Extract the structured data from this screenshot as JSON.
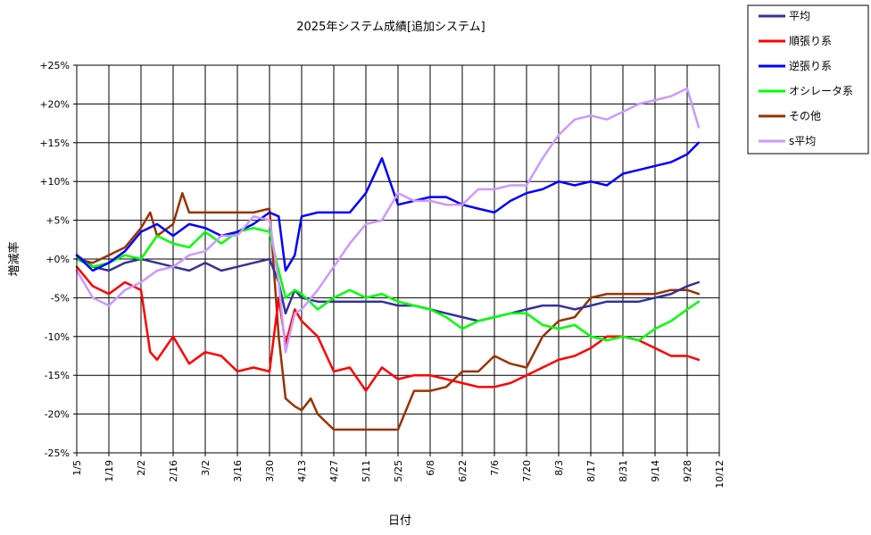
{
  "chart_data": {
    "type": "line",
    "title": "2025年システム成績[追加システム]",
    "xlabel": "日付",
    "ylabel": "増減率",
    "ylim": [
      -25,
      25
    ],
    "yticks": [
      25,
      20,
      15,
      10,
      5,
      0,
      -5,
      -10,
      -15,
      -20,
      -25
    ],
    "ytick_labels": [
      "+25%",
      "+20%",
      "+15%",
      "+10%",
      "+5%",
      "+0%",
      "-5%",
      "-10%",
      "-15%",
      "-20%",
      "-25%"
    ],
    "x_start": "1/5",
    "x_end": "10/12",
    "xtick_labels": [
      "1/5",
      "1/19",
      "2/2",
      "2/16",
      "3/2",
      "3/16",
      "3/30",
      "4/13",
      "4/27",
      "5/11",
      "5/25",
      "6/8",
      "6/22",
      "7/6",
      "7/20",
      "8/3",
      "8/17",
      "8/31",
      "9/14",
      "9/28",
      "10/12"
    ],
    "grid": true,
    "legend_position": "right",
    "series": [
      {
        "name": "平均",
        "color": "#333399",
        "x": [
          "1/5",
          "1/12",
          "1/19",
          "1/26",
          "2/2",
          "2/9",
          "2/16",
          "2/23",
          "3/2",
          "3/9",
          "3/16",
          "3/23",
          "3/30",
          "4/3",
          "4/6",
          "4/10",
          "4/13",
          "4/20",
          "4/27",
          "5/4",
          "5/11",
          "5/18",
          "5/25",
          "6/1",
          "6/8",
          "6/15",
          "6/22",
          "6/29",
          "7/6",
          "7/13",
          "7/20",
          "7/27",
          "8/3",
          "8/10",
          "8/17",
          "8/24",
          "8/31",
          "9/7",
          "9/14",
          "9/21",
          "9/28",
          "10/3"
        ],
        "values": [
          0.5,
          -1.0,
          -1.5,
          -0.5,
          0.0,
          -0.5,
          -1.0,
          -1.5,
          -0.5,
          -1.5,
          -1.0,
          -0.5,
          0.0,
          -3.0,
          -7.0,
          -4.0,
          -5.0,
          -5.5,
          -5.5,
          -5.5,
          -5.5,
          -5.5,
          -6.0,
          -6.0,
          -6.5,
          -7.0,
          -7.5,
          -8.0,
          -7.5,
          -7.0,
          -6.5,
          -6.0,
          -6.0,
          -6.5,
          -6.0,
          -5.5,
          -5.5,
          -5.5,
          -5.0,
          -4.5,
          -3.5,
          -3.0
        ]
      },
      {
        "name": "順張り系",
        "color": "#ff0000",
        "x": [
          "1/5",
          "1/12",
          "1/19",
          "1/26",
          "2/2",
          "2/6",
          "2/9",
          "2/16",
          "2/23",
          "3/2",
          "3/9",
          "3/16",
          "3/23",
          "3/30",
          "4/3",
          "4/6",
          "4/10",
          "4/13",
          "4/20",
          "4/27",
          "5/4",
          "5/11",
          "5/18",
          "5/25",
          "6/1",
          "6/8",
          "6/15",
          "6/22",
          "6/29",
          "7/6",
          "7/13",
          "7/20",
          "7/27",
          "8/3",
          "8/10",
          "8/17",
          "8/24",
          "8/31",
          "9/7",
          "9/14",
          "9/21",
          "9/28",
          "10/3"
        ],
        "values": [
          -1.0,
          -3.5,
          -4.5,
          -3.0,
          -4.0,
          -12.0,
          -13.0,
          -10.0,
          -13.5,
          -12.0,
          -12.5,
          -14.5,
          -14.0,
          -14.5,
          -5.0,
          -11.0,
          -6.5,
          -8.0,
          -10.0,
          -14.5,
          -14.0,
          -17.0,
          -14.0,
          -15.5,
          -15.0,
          -15.0,
          -15.5,
          -16.0,
          -16.5,
          -16.5,
          -16.0,
          -15.0,
          -14.0,
          -13.0,
          -12.5,
          -11.5,
          -10.0,
          -10.0,
          -10.5,
          -11.5,
          -12.5,
          -12.5,
          -13.0
        ]
      },
      {
        "name": "逆張り系",
        "color": "#0000ff",
        "x": [
          "1/5",
          "1/12",
          "1/19",
          "1/26",
          "2/2",
          "2/9",
          "2/16",
          "2/23",
          "3/2",
          "3/9",
          "3/16",
          "3/23",
          "3/30",
          "4/3",
          "4/6",
          "4/10",
          "4/13",
          "4/20",
          "4/27",
          "5/4",
          "5/11",
          "5/18",
          "5/25",
          "6/1",
          "6/8",
          "6/15",
          "6/22",
          "6/29",
          "7/6",
          "7/13",
          "7/20",
          "7/27",
          "8/3",
          "8/10",
          "8/17",
          "8/24",
          "8/31",
          "9/7",
          "9/14",
          "9/21",
          "9/28",
          "10/3"
        ],
        "values": [
          0.5,
          -1.5,
          -0.5,
          1.0,
          3.5,
          4.5,
          3.0,
          4.5,
          4.0,
          3.0,
          3.5,
          4.5,
          6.0,
          5.5,
          -1.5,
          0.5,
          5.5,
          6.0,
          6.0,
          6.0,
          8.5,
          13.0,
          7.0,
          7.5,
          8.0,
          8.0,
          7.0,
          6.5,
          6.0,
          7.5,
          8.5,
          9.0,
          10.0,
          9.5,
          10.0,
          9.5,
          11.0,
          11.5,
          12.0,
          12.5,
          13.5,
          15.0
        ]
      },
      {
        "name": "オシレータ系",
        "color": "#00ff00",
        "x": [
          "1/5",
          "1/12",
          "1/19",
          "1/26",
          "2/2",
          "2/9",
          "2/16",
          "2/23",
          "3/2",
          "3/9",
          "3/16",
          "3/23",
          "3/30",
          "4/3",
          "4/6",
          "4/10",
          "4/13",
          "4/20",
          "4/27",
          "5/4",
          "5/11",
          "5/18",
          "5/25",
          "6/1",
          "6/8",
          "6/15",
          "6/22",
          "6/29",
          "7/6",
          "7/13",
          "7/20",
          "7/27",
          "8/3",
          "8/10",
          "8/17",
          "8/24",
          "8/31",
          "9/7",
          "9/14",
          "9/21",
          "9/28",
          "10/3"
        ],
        "values": [
          0.0,
          -1.0,
          -0.5,
          0.5,
          0.0,
          3.0,
          2.0,
          1.5,
          3.5,
          2.0,
          3.5,
          4.0,
          3.5,
          -1.5,
          -5.0,
          -4.0,
          -4.5,
          -6.5,
          -5.0,
          -4.0,
          -5.0,
          -4.5,
          -5.5,
          -6.0,
          -6.5,
          -7.5,
          -9.0,
          -8.0,
          -7.5,
          -7.0,
          -7.0,
          -8.5,
          -9.0,
          -8.5,
          -10.0,
          -10.5,
          -10.0,
          -10.5,
          -9.0,
          -8.0,
          -6.5,
          -5.5
        ]
      },
      {
        "name": "その他",
        "color": "#993300",
        "x": [
          "1/5",
          "1/12",
          "1/19",
          "1/26",
          "2/2",
          "2/6",
          "2/9",
          "2/16",
          "2/20",
          "2/23",
          "3/2",
          "3/9",
          "3/16",
          "3/23",
          "3/30",
          "4/3",
          "4/6",
          "4/10",
          "4/13",
          "4/17",
          "4/20",
          "4/27",
          "5/4",
          "5/11",
          "5/18",
          "5/25",
          "6/1",
          "6/8",
          "6/15",
          "6/22",
          "6/29",
          "7/6",
          "7/13",
          "7/20",
          "7/27",
          "8/3",
          "8/10",
          "8/17",
          "8/24",
          "8/31",
          "9/7",
          "9/14",
          "9/21",
          "9/28",
          "10/3"
        ],
        "values": [
          0.0,
          -0.5,
          0.5,
          1.5,
          4.0,
          6.0,
          3.0,
          4.5,
          8.5,
          6.0,
          6.0,
          6.0,
          6.0,
          6.0,
          6.5,
          -10.0,
          -18.0,
          -19.0,
          -19.5,
          -18.0,
          -20.0,
          -22.0,
          -22.0,
          -22.0,
          -22.0,
          -22.0,
          -17.0,
          -17.0,
          -16.5,
          -14.5,
          -14.5,
          -12.5,
          -13.5,
          -14.0,
          -10.0,
          -8.0,
          -7.5,
          -5.0,
          -4.5,
          -4.5,
          -4.5,
          -4.5,
          -4.0,
          -4.0,
          -4.5
        ]
      },
      {
        "name": "s平均",
        "color": "#cc99ff",
        "x": [
          "1/5",
          "1/12",
          "1/19",
          "1/26",
          "2/2",
          "2/9",
          "2/16",
          "2/23",
          "3/2",
          "3/9",
          "3/16",
          "3/23",
          "3/30",
          "4/3",
          "4/6",
          "4/10",
          "4/13",
          "4/20",
          "4/27",
          "5/4",
          "5/11",
          "5/18",
          "5/25",
          "6/1",
          "6/8",
          "6/15",
          "6/22",
          "6/29",
          "7/6",
          "7/13",
          "7/20",
          "7/27",
          "8/3",
          "8/10",
          "8/17",
          "8/24",
          "8/31",
          "9/7",
          "9/14",
          "9/21",
          "9/28",
          "10/3"
        ],
        "values": [
          -1.5,
          -5.0,
          -6.0,
          -4.0,
          -3.0,
          -1.5,
          -1.0,
          0.5,
          1.0,
          3.0,
          3.0,
          5.5,
          5.0,
          -3.0,
          -12.0,
          -7.0,
          -6.5,
          -4.0,
          -1.0,
          2.0,
          4.5,
          5.0,
          8.5,
          7.5,
          7.5,
          7.0,
          7.0,
          9.0,
          9.0,
          9.5,
          9.5,
          13.0,
          16.0,
          18.0,
          18.5,
          18.0,
          19.0,
          20.0,
          20.5,
          21.0,
          22.0,
          17.0
        ]
      }
    ]
  }
}
